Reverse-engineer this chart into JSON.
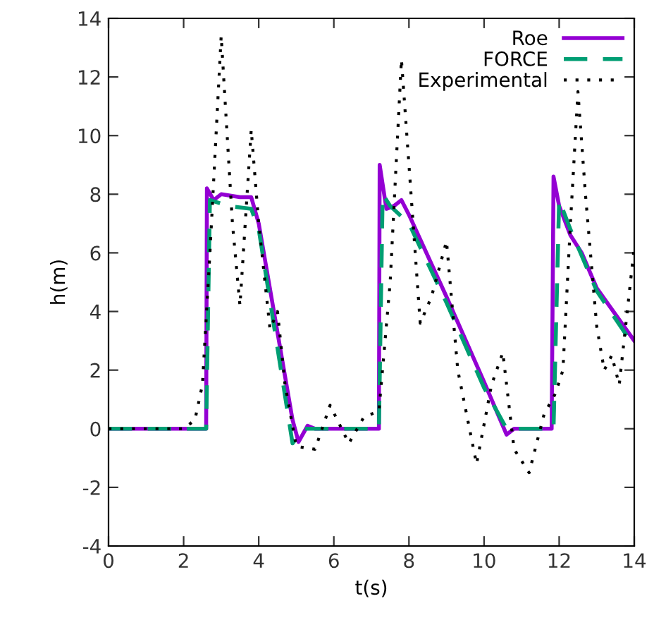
{
  "chart_data": {
    "type": "line",
    "xlabel": "t(s)",
    "ylabel": "h(m)",
    "xlim": [
      0,
      14
    ],
    "ylim": [
      -4,
      14
    ],
    "xticks": [
      0,
      2,
      4,
      6,
      8,
      10,
      12,
      14
    ],
    "yticks": [
      -4,
      -2,
      0,
      2,
      4,
      6,
      8,
      10,
      12,
      14
    ],
    "grid": false,
    "legend": "top right",
    "series": [
      {
        "name": "Roe",
        "color": "#9400d3",
        "line_style": "solid",
        "x": [
          0,
          2.6,
          2.62,
          2.8,
          3.0,
          3.5,
          3.8,
          4.0,
          4.9,
          5.06,
          5.3,
          5.5,
          7.2,
          7.22,
          7.4,
          7.6,
          7.8,
          8.0,
          9.0,
          10.0,
          10.6,
          10.8,
          11.8,
          11.85,
          12.0,
          12.3,
          12.6,
          13.0,
          14.0
        ],
        "values": [
          0,
          0,
          8.2,
          7.8,
          8.0,
          7.9,
          7.9,
          7.0,
          0.3,
          -0.45,
          0.1,
          0,
          0,
          9.0,
          7.5,
          7.6,
          7.8,
          7.3,
          4.5,
          1.6,
          -0.2,
          0,
          0,
          8.6,
          7.6,
          6.6,
          6.0,
          4.8,
          3.0
        ]
      },
      {
        "name": "FORCE",
        "color": "#009e73",
        "line_style": "dashed",
        "x": [
          0,
          2.6,
          2.7,
          3.2,
          3.8,
          4.0,
          4.9,
          5.2,
          7.2,
          7.3,
          7.5,
          8.0,
          9.0,
          10.0,
          10.6,
          11.85,
          12.0,
          12.3,
          13.0,
          14.0
        ],
        "values": [
          0,
          0,
          7.8,
          7.6,
          7.5,
          6.8,
          -0.5,
          0,
          0,
          8.0,
          7.6,
          7.0,
          4.3,
          1.4,
          0,
          0,
          7.8,
          6.8,
          4.7,
          2.8
        ]
      },
      {
        "name": "Experimental",
        "color": "#000000",
        "line_style": "dotted",
        "x": [
          0,
          2.0,
          2.3,
          2.5,
          2.7,
          3.0,
          3.3,
          3.5,
          3.8,
          4.0,
          4.3,
          4.5,
          4.7,
          5.0,
          5.5,
          5.9,
          6.4,
          6.8,
          7.2,
          7.5,
          7.8,
          8.0,
          8.3,
          8.6,
          9.0,
          9.3,
          9.8,
          10.2,
          10.5,
          10.8,
          11.2,
          11.6,
          11.9,
          12.1,
          12.3,
          12.5,
          12.7,
          13.0,
          13.2,
          13.4,
          13.6,
          14.0
        ],
        "values": [
          0,
          0,
          0.3,
          1.5,
          6,
          13.4,
          7,
          4.2,
          10.2,
          7,
          3.4,
          4.0,
          1.5,
          -0.6,
          -0.7,
          0.8,
          -0.5,
          0.4,
          0.6,
          5,
          12.6,
          9,
          3.6,
          4.5,
          6.4,
          2,
          -1.2,
          1.5,
          2.6,
          -0.7,
          -1.5,
          0.5,
          1.2,
          2,
          7,
          11.5,
          8,
          3.5,
          2,
          2.5,
          1.5,
          6.2
        ]
      }
    ]
  }
}
